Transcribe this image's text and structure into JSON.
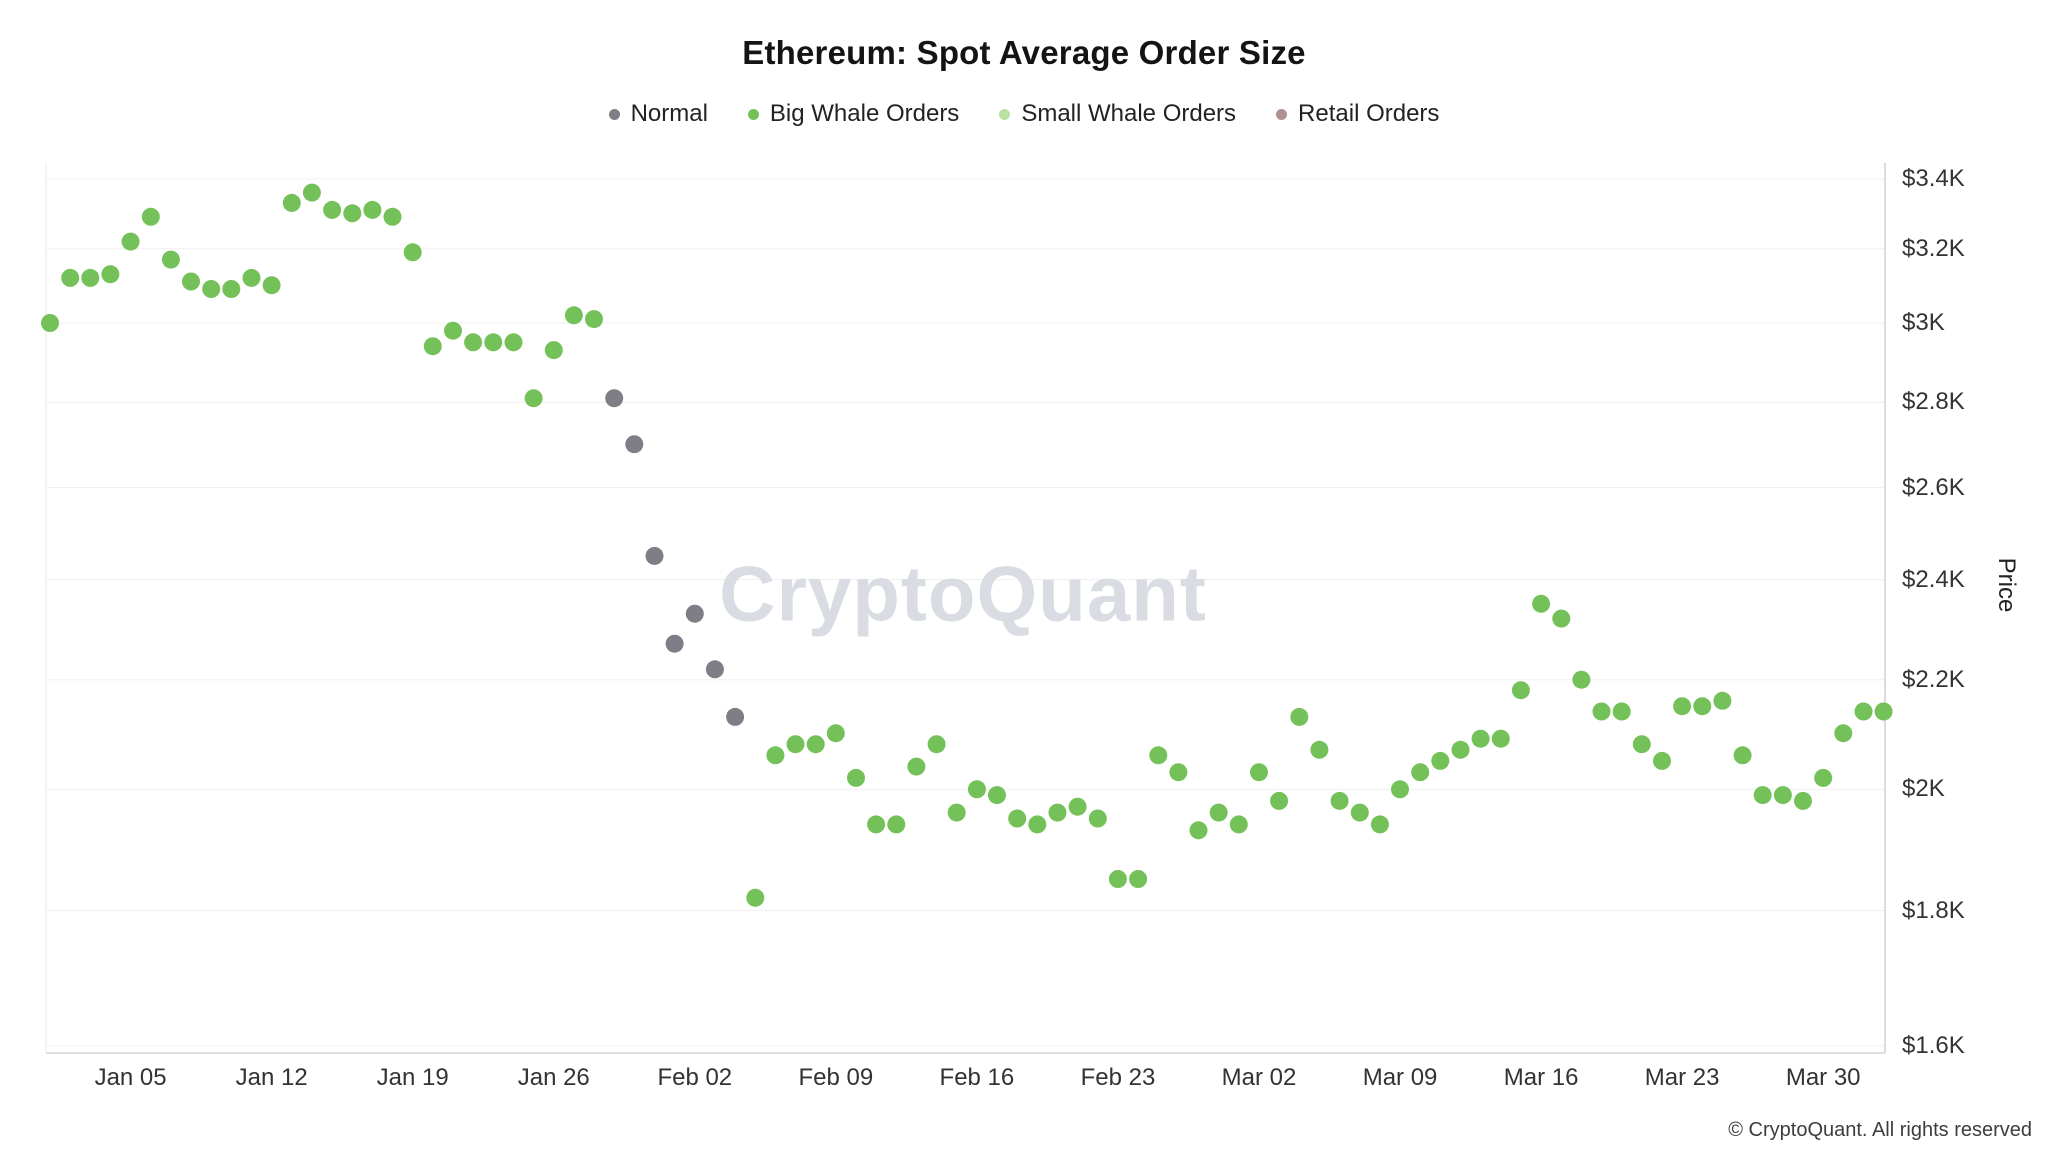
{
  "title": "Ethereum: Spot Average Order Size",
  "watermark": "CryptoQuant",
  "footer": "© CryptoQuant. All rights reserved",
  "legend": {
    "items": [
      {
        "label": "Normal",
        "color": "#7e7e87"
      },
      {
        "label": "Big Whale Orders",
        "color": "#74c15a"
      },
      {
        "label": "Small Whale Orders",
        "color": "#b9e2a1"
      },
      {
        "label": "Retail Orders",
        "color": "#b29090"
      }
    ]
  },
  "y_axis": {
    "label": "Price",
    "scale": "log",
    "ticks": [
      {
        "label": "$3.4K",
        "value": 3400
      },
      {
        "label": "$3.2K",
        "value": 3200
      },
      {
        "label": "$3K",
        "value": 3000
      },
      {
        "label": "$2.8K",
        "value": 2800
      },
      {
        "label": "$2.6K",
        "value": 2600
      },
      {
        "label": "$2.4K",
        "value": 2400
      },
      {
        "label": "$2.2K",
        "value": 2200
      },
      {
        "label": "$2K",
        "value": 2000
      },
      {
        "label": "$1.8K",
        "value": 1800
      },
      {
        "label": "$1.6K",
        "value": 1600
      }
    ]
  },
  "x_axis": {
    "ticks": [
      "Jan 05",
      "Jan 12",
      "Jan 19",
      "Jan 26",
      "Feb 02",
      "Feb 09",
      "Feb 16",
      "Feb 23",
      "Mar 02",
      "Mar 09",
      "Mar 16",
      "Mar 23",
      "Mar 30"
    ]
  },
  "chart_data": {
    "type": "scatter",
    "title": "Ethereum: Spot Average Order Size",
    "y_scale": "log",
    "y_unit": "USD",
    "x_range": [
      "Jan 01",
      "Apr 02"
    ],
    "series": [
      {
        "name": "Big Whale Orders",
        "points": [
          [
            "Jan 01",
            3000
          ],
          [
            "Jan 02",
            3120
          ],
          [
            "Jan 03",
            3120
          ],
          [
            "Jan 04",
            3130
          ],
          [
            "Jan 05",
            3220
          ],
          [
            "Jan 06",
            3290
          ],
          [
            "Jan 07",
            3170
          ],
          [
            "Jan 08",
            3110
          ],
          [
            "Jan 09",
            3090
          ],
          [
            "Jan 10",
            3090
          ],
          [
            "Jan 11",
            3120
          ],
          [
            "Jan 12",
            3100
          ],
          [
            "Jan 13",
            3330
          ],
          [
            "Jan 14",
            3360
          ],
          [
            "Jan 15",
            3310
          ],
          [
            "Jan 16",
            3300
          ],
          [
            "Jan 17",
            3310
          ],
          [
            "Jan 18",
            3290
          ],
          [
            "Jan 19",
            3190
          ],
          [
            "Jan 20",
            2940
          ],
          [
            "Jan 21",
            2980
          ],
          [
            "Jan 22",
            2950
          ],
          [
            "Jan 23",
            2950
          ],
          [
            "Jan 24",
            2950
          ],
          [
            "Jan 25",
            2810
          ],
          [
            "Jan 26",
            2930
          ],
          [
            "Jan 27",
            3020
          ],
          [
            "Jan 28",
            3010
          ],
          [
            "Feb 05",
            1820
          ],
          [
            "Feb 06",
            2060
          ],
          [
            "Feb 07",
            2080
          ],
          [
            "Feb 08",
            2080
          ],
          [
            "Feb 09",
            2100
          ],
          [
            "Feb 10",
            2020
          ],
          [
            "Feb 11",
            1940
          ],
          [
            "Feb 12",
            1940
          ],
          [
            "Feb 13",
            2040
          ],
          [
            "Feb 14",
            2080
          ],
          [
            "Feb 15",
            1960
          ],
          [
            "Feb 16",
            2000
          ],
          [
            "Feb 17",
            1990
          ],
          [
            "Feb 18",
            1950
          ],
          [
            "Feb 19",
            1940
          ],
          [
            "Feb 20",
            1960
          ],
          [
            "Feb 21",
            1970
          ],
          [
            "Feb 22",
            1950
          ],
          [
            "Feb 23",
            1850
          ],
          [
            "Feb 24",
            1850
          ],
          [
            "Feb 25",
            2060
          ],
          [
            "Feb 26",
            2030
          ],
          [
            "Feb 27",
            1930
          ],
          [
            "Feb 28",
            1960
          ],
          [
            "Mar 01",
            1940
          ],
          [
            "Mar 02",
            2030
          ],
          [
            "Mar 03",
            1980
          ],
          [
            "Mar 04",
            2130
          ],
          [
            "Mar 05",
            2070
          ],
          [
            "Mar 06",
            1980
          ],
          [
            "Mar 07",
            1960
          ],
          [
            "Mar 08",
            1940
          ],
          [
            "Mar 09",
            2000
          ],
          [
            "Mar 10",
            2030
          ],
          [
            "Mar 11",
            2050
          ],
          [
            "Mar 12",
            2070
          ],
          [
            "Mar 13",
            2090
          ],
          [
            "Mar 14",
            2090
          ],
          [
            "Mar 15",
            2180
          ],
          [
            "Mar 16",
            2350
          ],
          [
            "Mar 17",
            2320
          ],
          [
            "Mar 18",
            2200
          ],
          [
            "Mar 19",
            2140
          ],
          [
            "Mar 20",
            2140
          ],
          [
            "Mar 21",
            2080
          ],
          [
            "Mar 22",
            2050
          ],
          [
            "Mar 23",
            2150
          ],
          [
            "Mar 24",
            2150
          ],
          [
            "Mar 25",
            2160
          ],
          [
            "Mar 26",
            2060
          ],
          [
            "Mar 27",
            1990
          ],
          [
            "Mar 28",
            1990
          ],
          [
            "Mar 29",
            1980
          ],
          [
            "Mar 30",
            2020
          ],
          [
            "Mar 31",
            2100
          ],
          [
            "Apr 01",
            2140
          ],
          [
            "Apr 02",
            2140
          ]
        ]
      },
      {
        "name": "Normal",
        "points": [
          [
            "Jan 29",
            2810
          ],
          [
            "Jan 30",
            2700
          ],
          [
            "Jan 31",
            2450
          ],
          [
            "Feb 01",
            2270
          ],
          [
            "Feb 02",
            2330
          ],
          [
            "Feb 03",
            2220
          ],
          [
            "Feb 04",
            2130
          ]
        ]
      },
      {
        "name": "Small Whale Orders",
        "points": []
      },
      {
        "name": "Retail Orders",
        "points": []
      }
    ]
  }
}
